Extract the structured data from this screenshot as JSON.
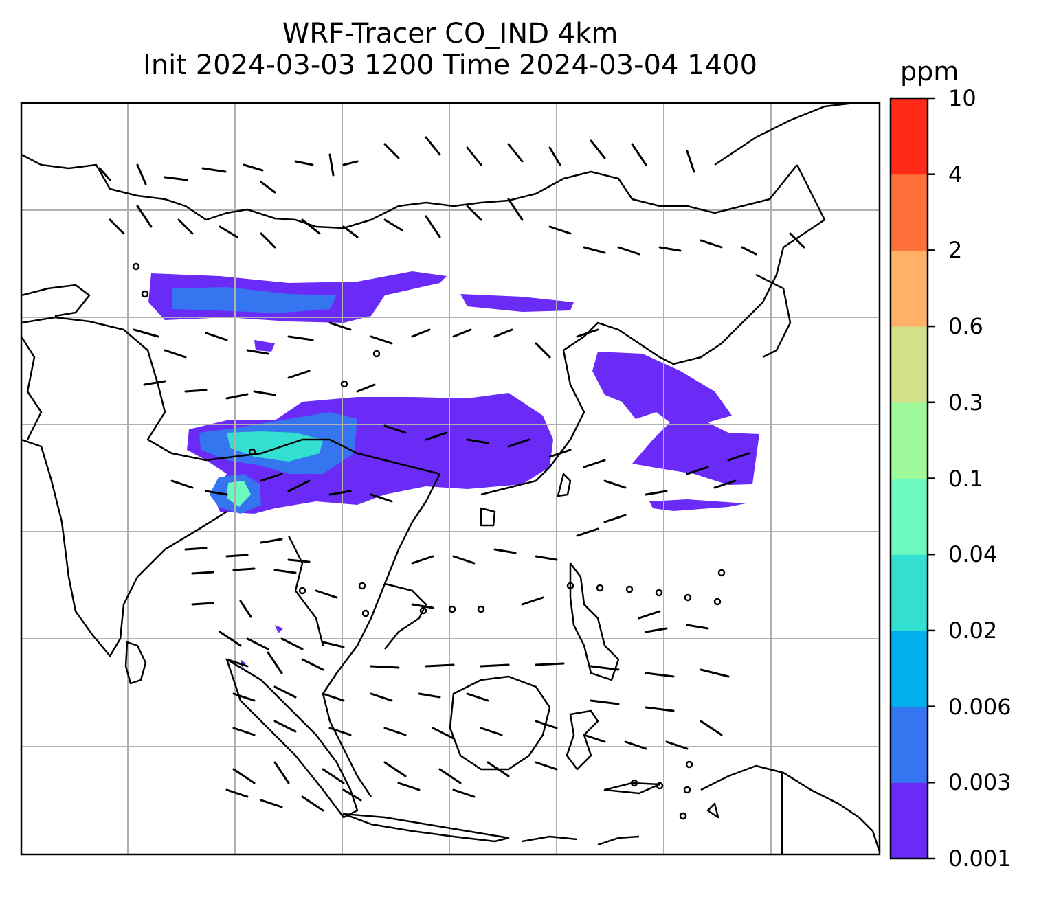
{
  "figure": {
    "title_line1": "WRF-Tracer CO_IND 4km",
    "title_line2": "Init 2024-03-03 1200 Time 2024-03-04 1400"
  },
  "colorbar": {
    "unit": "ppm",
    "levels": [
      "0.001",
      "0.003",
      "0.006",
      "0.02",
      "0.04",
      "0.1",
      "0.3",
      "0.6",
      "2",
      "4",
      "10"
    ],
    "colors": [
      "#6a2bf7",
      "#3575f0",
      "#00b0ee",
      "#33dfd0",
      "#6bf9c0",
      "#9df99a",
      "#d0e189",
      "#feb167",
      "#ff713b",
      "#ff2a17"
    ]
  },
  "map": {
    "gridlines": true,
    "plume_colors": [
      "#6a2bf7",
      "#3575f0",
      "#33dfd0",
      "#6bf9c0"
    ],
    "line_color": "#000000",
    "grid_color": "#b0b0b0"
  }
}
